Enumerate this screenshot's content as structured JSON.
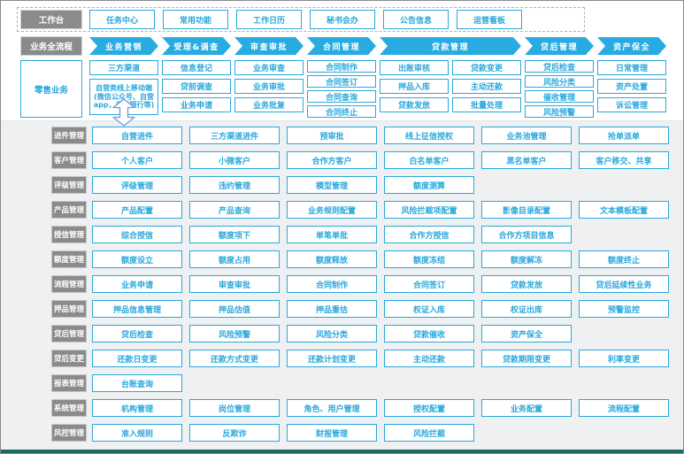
{
  "colors": {
    "accent": "#29abe2",
    "label_gray": "#8b8b8b",
    "panel_bg": "#eff0f1",
    "panel_bottom_edge": "#1e6b60"
  },
  "workbench": {
    "label": "工作台",
    "items": [
      "任务中心",
      "常用功能",
      "工作日历",
      "秘书会办",
      "公告信息",
      "运营看板"
    ]
  },
  "process": {
    "label": "业务全流程",
    "stages": [
      {
        "label": "业务营销",
        "span": 1
      },
      {
        "label": "受理&调查",
        "span": 1
      },
      {
        "label": "审查审批",
        "span": 1
      },
      {
        "label": "合同管理",
        "span": 1
      },
      {
        "label": "贷款管理",
        "span": 2
      },
      {
        "label": "贷后管理",
        "span": 1
      },
      {
        "label": "资产保全",
        "span": 1
      }
    ]
  },
  "retail": {
    "label": "零售业务",
    "arrow_icon": "up-down-arrow",
    "columns": [
      {
        "items": [
          "三方渠道",
          "自营类线上移动端(微信公众号、自营app，手机银行等)"
        ],
        "tall_last": true,
        "arrow_below": true
      },
      {
        "items": [
          "信息登记",
          "贷前调查",
          "业务申请"
        ]
      },
      {
        "items": [
          "业务审查",
          "业务审批",
          "业务批复"
        ]
      },
      {
        "items": [
          "合同制作",
          "合同签订",
          "合同查询",
          "合同终止"
        ]
      },
      {
        "items": [
          "出账审核",
          "押品入库",
          "贷款发放"
        ]
      },
      {
        "items": [
          "贷款变更",
          "主动还款",
          "批量处理"
        ]
      },
      {
        "items": [
          "贷后检查",
          "风险分类",
          "催收管理",
          "风险预警"
        ]
      },
      {
        "items": [
          "日常管理",
          "资产处置",
          "诉讼管理"
        ]
      }
    ]
  },
  "modules": [
    {
      "label": "进件管理",
      "items": [
        "自营进件",
        "三方渠道进件",
        "预审批",
        "线上征信授权",
        "业务池管理",
        "抢单派单"
      ]
    },
    {
      "label": "客户管理",
      "items": [
        "个人客户",
        "小微客户",
        "合作方客户",
        "白名单客户",
        "黑名单客户",
        "客户移交、共享"
      ]
    },
    {
      "label": "评级管理",
      "items": [
        "评级管理",
        "违约管理",
        "模型管理",
        "额度测算"
      ]
    },
    {
      "label": "产品管理",
      "items": [
        "产品配置",
        "产品查询",
        "业务规则配置",
        "风险拦截项配置",
        "影像目录配置",
        "文本模板配置"
      ]
    },
    {
      "label": "授信管理",
      "items": [
        "综合授信",
        "额度项下",
        "单笔单批",
        "合作方授信",
        "合作方项目信息"
      ]
    },
    {
      "label": "额度管理",
      "items": [
        "额度设立",
        "额度占用",
        "额度释放",
        "额度冻结",
        "额度解冻",
        "额度终止"
      ]
    },
    {
      "label": "流程管理",
      "items": [
        "业务申请",
        "审查审批",
        "合同制作",
        "合同签订",
        "贷款发放",
        "贷后延续性业务"
      ]
    },
    {
      "label": "押品管理",
      "items": [
        "押品信息管理",
        "押品估值",
        "押品重估",
        "权证入库",
        "权证出库",
        "预警监控"
      ]
    },
    {
      "label": "贷后管理",
      "items": [
        "贷后检查",
        "风险预警",
        "风险分类",
        "贷款催收",
        "资产保全"
      ]
    },
    {
      "label": "贷后变更",
      "items": [
        "还款日变更",
        "还款方式变更",
        "还款计划变更",
        "主动还款",
        "贷款期限变更",
        "利率变更"
      ]
    },
    {
      "label": "报表管理",
      "items": [
        "台账查询"
      ]
    },
    {
      "label": "系统管理",
      "items": [
        "机构管理",
        "岗位管理",
        "角色、用户管理",
        "授权配置",
        "业务配置",
        "流程配置"
      ]
    },
    {
      "label": "风控管理",
      "items": [
        "准入规则",
        "反欺诈",
        "财报管理",
        "风险拦截"
      ]
    }
  ]
}
